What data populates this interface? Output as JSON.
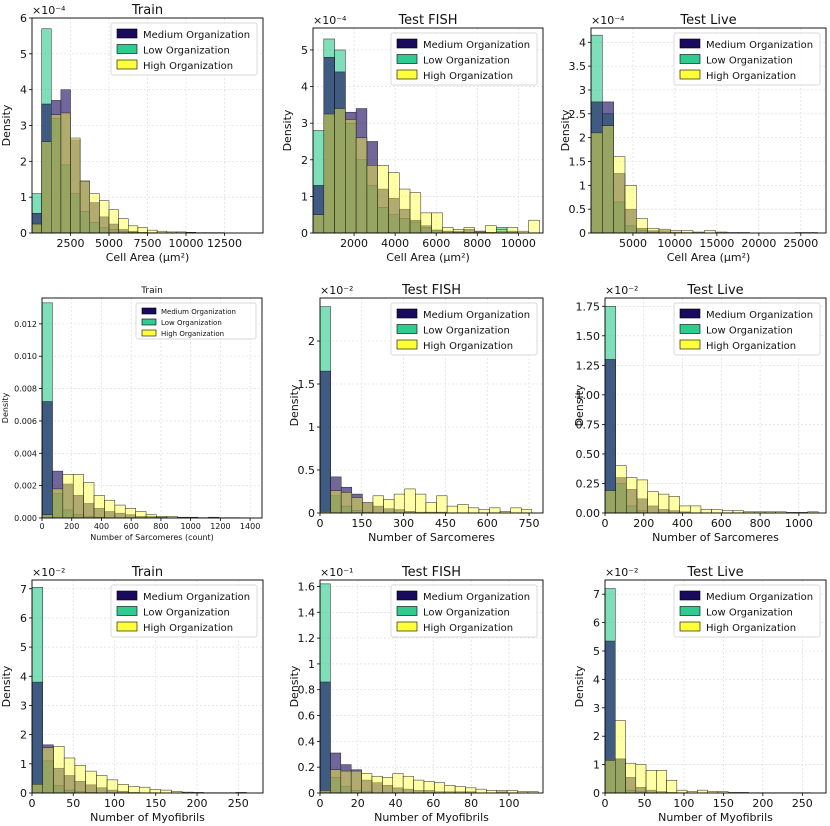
{
  "legend_labels": [
    "Medium Organization",
    "Low Organization",
    "High Organization"
  ],
  "colors": {
    "medium": "#1a0a5e",
    "low": "#2ecc8f",
    "high": "#ffff3a",
    "medium_low_overlap": "#1c4d8c",
    "medium_high_overlap": "#6b2a3e",
    "low_high_overlap": "#5a8f3a",
    "all_overlap": "#5a8f3a"
  },
  "chart_data": [
    {
      "type": "bar",
      "title": "Train",
      "xlabel": "Cell Area (µm²)",
      "ylabel": "Density",
      "exponent": "×10⁻⁴",
      "xlim": [
        0,
        15000
      ],
      "ylim": [
        0,
        6
      ],
      "xticks": [
        2500,
        5000,
        7500,
        10000,
        12500
      ],
      "yticks": [
        0,
        1,
        2,
        3,
        4,
        5,
        6
      ],
      "bin_edges": [
        0,
        625,
        1250,
        1875,
        2500,
        3125,
        3750,
        4375,
        5000,
        5625,
        6250,
        6875,
        7500,
        8125,
        8750,
        9375,
        10000,
        10625,
        11250,
        11875,
        12500
      ],
      "series": [
        {
          "name": "Medium Organization",
          "values": [
            0.55,
            3.6,
            3.7,
            4.0,
            2.6,
            1.45,
            0.85,
            0.45,
            0.25,
            0.1,
            0.05,
            0.02,
            0.01,
            0.01,
            0,
            0,
            0,
            0,
            0,
            0
          ]
        },
        {
          "name": "Low Organization",
          "values": [
            1.1,
            5.7,
            3.2,
            1.9,
            1.1,
            0.6,
            0.3,
            0.15,
            0.1,
            0.05,
            0.02,
            0.01,
            0,
            0,
            0,
            0,
            0,
            0,
            0,
            0
          ]
        },
        {
          "name": "High Organization",
          "values": [
            0.25,
            2.55,
            3.3,
            3.35,
            2.65,
            1.45,
            1.1,
            0.9,
            0.65,
            0.4,
            0.2,
            0.15,
            0.08,
            0.05,
            0.03,
            0.03,
            0.02,
            0.01,
            0.01,
            0.01
          ]
        }
      ]
    },
    {
      "type": "bar",
      "title": "Test FISH",
      "xlabel": "Cell Area (µm²)",
      "ylabel": "Density",
      "exponent": "×10⁻⁴",
      "xlim": [
        0,
        11200
      ],
      "ylim": [
        0,
        5.6
      ],
      "xticks": [
        2000,
        4000,
        6000,
        8000,
        10000
      ],
      "yticks": [
        0,
        1,
        2,
        3,
        4,
        5
      ],
      "bin_edges": [
        0,
        525,
        1050,
        1575,
        2100,
        2625,
        3150,
        3675,
        4200,
        4725,
        5250,
        5775,
        6300,
        6825,
        7350,
        7875,
        8400,
        8925,
        9450,
        9975,
        10500,
        11025
      ],
      "series": [
        {
          "name": "Medium Organization",
          "values": [
            1.3,
            4.8,
            4.4,
            3.3,
            3.4,
            2.5,
            1.2,
            0.95,
            0.65,
            0.35,
            0.2,
            0.08,
            0.05,
            0.05,
            0.1,
            0.05,
            0.02,
            0.05,
            0.05,
            0,
            0
          ]
        },
        {
          "name": "Low Organization",
          "values": [
            2.8,
            5.3,
            5.0,
            3.0,
            2.0,
            1.3,
            0.7,
            0.5,
            0.4,
            0.3,
            0.15,
            0.08,
            0.05,
            0.02,
            0.02,
            0.02,
            0.01,
            0.15,
            0.01,
            0,
            0
          ]
        },
        {
          "name": "High Organization",
          "values": [
            0.5,
            3.25,
            3.4,
            3.1,
            2.6,
            1.85,
            1.85,
            1.65,
            1.2,
            1.1,
            0.55,
            0.55,
            0.15,
            0.1,
            0.15,
            0.05,
            0.2,
            0.1,
            0.15,
            0.05,
            0.35
          ]
        }
      ]
    },
    {
      "type": "bar",
      "title": "Test Live",
      "xlabel": "Cell Area (µm²)",
      "ylabel": "Density",
      "exponent": "×10⁻⁴",
      "xlim": [
        0,
        28000
      ],
      "ylim": [
        0,
        4.3
      ],
      "xticks": [
        5000,
        10000,
        15000,
        20000,
        25000
      ],
      "yticks": [
        0,
        0.5,
        1.0,
        1.5,
        2.0,
        2.5,
        3.0,
        3.5,
        4.0
      ],
      "bin_edges": [
        0,
        1350,
        2700,
        4050,
        5400,
        6750,
        8100,
        9450,
        10800,
        12150,
        13500,
        14850,
        16200,
        17550,
        18900,
        20250,
        21600,
        22950,
        24300,
        25650,
        27000
      ],
      "series": [
        {
          "name": "Medium Organization",
          "values": [
            2.75,
            2.75,
            1.25,
            0.5,
            0.1,
            0.05,
            0.05,
            0.02,
            0.01,
            0,
            0,
            0,
            0,
            0,
            0,
            0,
            0,
            0,
            0,
            0
          ]
        },
        {
          "name": "Low Organization",
          "values": [
            4.15,
            2.5,
            0.65,
            0.15,
            0.05,
            0.02,
            0,
            0,
            0,
            0,
            0,
            0,
            0,
            0,
            0,
            0,
            0,
            0,
            0,
            0
          ]
        },
        {
          "name": "High Organization",
          "values": [
            2.1,
            2.25,
            1.6,
            1.0,
            0.3,
            0.1,
            0.08,
            0.05,
            0.05,
            0.02,
            0.05,
            0.02,
            0.01,
            0.01,
            0,
            0,
            0,
            0,
            0.01,
            0.01
          ]
        }
      ]
    },
    {
      "type": "bar",
      "title": "Train",
      "xlabel": "Number of Sarcomeres (count)",
      "ylabel": "Density",
      "exponent": "",
      "xlim": [
        0,
        1480
      ],
      "ylim": [
        0,
        0.0136
      ],
      "xticks": [
        0,
        200,
        400,
        600,
        800,
        1000,
        1200,
        1400
      ],
      "yticks": [
        0.0,
        0.002,
        0.004,
        0.006,
        0.008,
        0.01,
        0.012
      ],
      "tick_labels_y": [
        "0.000",
        "0.002",
        "0.004",
        "0.006",
        "0.008",
        "0.010",
        "0.012"
      ],
      "small": true,
      "bin_edges": [
        0,
        70,
        140,
        210,
        280,
        350,
        420,
        490,
        560,
        630,
        700,
        770,
        840,
        910,
        980,
        1050,
        1120,
        1190,
        1260,
        1330,
        1400
      ],
      "series": [
        {
          "name": "Medium Organization",
          "values": [
            0.0072,
            0.0029,
            0.0021,
            0.0014,
            0.0009,
            0.0006,
            0.0004,
            0.0003,
            0.0002,
            0.0001,
            0.0001,
            5e-05,
            2e-05,
            1e-05,
            0,
            0,
            0,
            0,
            0,
            0
          ]
        },
        {
          "name": "Low Organization",
          "values": [
            0.0133,
            0.0015,
            0.0005,
            0.0002,
            0.0001,
            5e-05,
            0,
            0,
            0,
            0,
            0,
            0,
            0,
            0,
            0,
            0,
            0,
            0,
            0,
            0
          ]
        },
        {
          "name": "High Organization",
          "values": [
            0.0002,
            0.0018,
            0.0027,
            0.0027,
            0.0022,
            0.0014,
            0.0011,
            0.0008,
            0.0006,
            0.0004,
            0.0002,
            0.0001,
            0.0001,
            5e-05,
            5e-05,
            2e-05,
            5e-05,
            2e-05,
            2e-05,
            1e-05
          ]
        }
      ]
    },
    {
      "type": "bar",
      "title": "Test FISH",
      "xlabel": "Number of Sarcomeres",
      "ylabel": "Density",
      "exponent": "×10⁻²",
      "xlim": [
        0,
        800
      ],
      "ylim": [
        0,
        2.5
      ],
      "xticks": [
        0,
        150,
        300,
        450,
        600,
        750
      ],
      "yticks": [
        0,
        0.5,
        1.0,
        1.5,
        2.0
      ],
      "bin_edges": [
        0,
        38,
        76,
        114,
        152,
        190,
        228,
        266,
        304,
        342,
        380,
        418,
        456,
        494,
        532,
        570,
        608,
        646,
        684,
        722,
        760
      ],
      "series": [
        {
          "name": "Medium Organization",
          "values": [
            1.65,
            0.42,
            0.3,
            0.22,
            0.12,
            0.08,
            0.05,
            0.04,
            0.02,
            0.01,
            0.01,
            0.01,
            0,
            0,
            0,
            0,
            0,
            0,
            0,
            0
          ]
        },
        {
          "name": "Low Organization",
          "values": [
            2.4,
            0.2,
            0.08,
            0.03,
            0.01,
            0,
            0,
            0,
            0,
            0,
            0,
            0,
            0,
            0,
            0,
            0,
            0,
            0,
            0,
            0
          ]
        },
        {
          "name": "High Organization",
          "values": [
            0.02,
            0.26,
            0.24,
            0.18,
            0.12,
            0.2,
            0.16,
            0.22,
            0.28,
            0.22,
            0.12,
            0.2,
            0.08,
            0.1,
            0.06,
            0.04,
            0.06,
            0.02,
            0.06,
            0.04
          ]
        }
      ]
    },
    {
      "type": "bar",
      "title": "Test Live",
      "xlabel": "Number of Sarcomeres",
      "ylabel": "Density",
      "exponent": "×10⁻²",
      "xlim": [
        0,
        1140
      ],
      "ylim": [
        0,
        1.82
      ],
      "xticks": [
        0,
        200,
        400,
        600,
        800,
        1000
      ],
      "yticks": [
        0,
        0.25,
        0.5,
        0.75,
        1.0,
        1.25,
        1.5,
        1.75
      ],
      "tick_labels_y": [
        "0.00",
        "0.25",
        "0.50",
        "0.75",
        "1.00",
        "1.25",
        "1.50",
        "1.75"
      ],
      "bin_edges": [
        0,
        55,
        110,
        165,
        220,
        275,
        330,
        385,
        440,
        495,
        550,
        605,
        660,
        715,
        770,
        825,
        880,
        935,
        990,
        1045,
        1100
      ],
      "series": [
        {
          "name": "Medium Organization",
          "values": [
            1.3,
            0.3,
            0.2,
            0.12,
            0.06,
            0.03,
            0.02,
            0.01,
            0,
            0,
            0,
            0,
            0,
            0,
            0,
            0,
            0,
            0,
            0,
            0
          ]
        },
        {
          "name": "Low Organization",
          "values": [
            1.75,
            0.25,
            0.06,
            0.02,
            0,
            0,
            0,
            0,
            0,
            0,
            0,
            0,
            0,
            0,
            0,
            0,
            0,
            0,
            0,
            0
          ]
        },
        {
          "name": "High Organization",
          "values": [
            0.19,
            0.4,
            0.3,
            0.28,
            0.18,
            0.16,
            0.14,
            0.06,
            0.06,
            0.03,
            0.03,
            0.02,
            0.02,
            0.01,
            0.01,
            0.01,
            0.01,
            0.005,
            0.005,
            0.01
          ]
        }
      ]
    },
    {
      "type": "bar",
      "title": "Train",
      "xlabel": "Number of Myofibrils",
      "ylabel": "Density",
      "exponent": "×10⁻²",
      "xlim": [
        0,
        280
      ],
      "ylim": [
        0,
        7.3
      ],
      "xticks": [
        0,
        50,
        100,
        150,
        200,
        250
      ],
      "yticks": [
        0,
        1,
        2,
        3,
        4,
        5,
        6,
        7
      ],
      "bin_edges": [
        0,
        13,
        26,
        39,
        52,
        65,
        78,
        91,
        104,
        117,
        130,
        143,
        156,
        169,
        182,
        195,
        208,
        221,
        234,
        247,
        260
      ],
      "series": [
        {
          "name": "Medium Organization",
          "values": [
            3.8,
            1.65,
            0.85,
            0.6,
            0.4,
            0.28,
            0.18,
            0.1,
            0.06,
            0.02,
            0.01,
            0.01,
            0,
            0,
            0,
            0,
            0,
            0,
            0,
            0
          ]
        },
        {
          "name": "Low Organization",
          "values": [
            7.05,
            1.1,
            0.25,
            0.1,
            0.05,
            0.02,
            0,
            0,
            0,
            0,
            0,
            0,
            0,
            0,
            0,
            0,
            0,
            0,
            0,
            0
          ]
        },
        {
          "name": "High Organization",
          "values": [
            0.3,
            1.55,
            1.6,
            1.2,
            0.95,
            0.75,
            0.6,
            0.45,
            0.3,
            0.22,
            0.2,
            0.12,
            0.1,
            0.05,
            0.03,
            0.02,
            0.01,
            0.01,
            0.01,
            0.02
          ]
        }
      ]
    },
    {
      "type": "bar",
      "title": "Test FISH",
      "xlabel": "Number of Myofibrils",
      "ylabel": "Density",
      "exponent": "×10⁻¹",
      "xlim": [
        0,
        118
      ],
      "ylim": [
        0,
        1.65
      ],
      "xticks": [
        0,
        20,
        40,
        60,
        80,
        100
      ],
      "yticks": [
        0,
        0.2,
        0.4,
        0.6,
        0.8,
        1.0,
        1.2,
        1.4,
        1.6
      ],
      "bin_edges": [
        0,
        5.5,
        11,
        16.5,
        22,
        27.5,
        33,
        38.5,
        44,
        49.5,
        55,
        60.5,
        66,
        71.5,
        77,
        82.5,
        88,
        93.5,
        99,
        104.5,
        110,
        115.5
      ],
      "series": [
        {
          "name": "Medium Organization",
          "values": [
            0.86,
            0.31,
            0.22,
            0.18,
            0.1,
            0.08,
            0.06,
            0.04,
            0.03,
            0.02,
            0.02,
            0.01,
            0.01,
            0.01,
            0.01,
            0,
            0,
            0.01,
            0,
            0,
            0
          ]
        },
        {
          "name": "Low Organization",
          "values": [
            1.62,
            0.12,
            0.05,
            0.02,
            0.01,
            0,
            0,
            0,
            0,
            0,
            0,
            0,
            0,
            0,
            0,
            0,
            0,
            0,
            0,
            0,
            0
          ]
        },
        {
          "name": "High Organization",
          "values": [
            0.02,
            0.18,
            0.17,
            0.17,
            0.15,
            0.13,
            0.12,
            0.15,
            0.13,
            0.1,
            0.09,
            0.08,
            0.06,
            0.05,
            0.04,
            0.03,
            0.02,
            0.02,
            0.02,
            0.01,
            0.01
          ]
        }
      ]
    },
    {
      "type": "bar",
      "title": "Test Live",
      "xlabel": "Number of Myofibrils",
      "ylabel": "Density",
      "exponent": "×10⁻²",
      "xlim": [
        0,
        280
      ],
      "ylim": [
        0,
        7.5
      ],
      "xticks": [
        0,
        50,
        100,
        150,
        200,
        250
      ],
      "yticks": [
        0,
        1,
        2,
        3,
        4,
        5,
        6,
        7
      ],
      "bin_edges": [
        0,
        13,
        26,
        39,
        52,
        65,
        78,
        91,
        104,
        117,
        130,
        143,
        156,
        169,
        182,
        195,
        208,
        221,
        234,
        247,
        260
      ],
      "series": [
        {
          "name": "Medium Organization",
          "values": [
            5.35,
            1.2,
            0.55,
            0.2,
            0.1,
            0.05,
            0.02,
            0.01,
            0,
            0,
            0,
            0,
            0,
            0,
            0,
            0,
            0,
            0,
            0,
            0
          ]
        },
        {
          "name": "Low Organization",
          "values": [
            7.2,
            1.2,
            0.1,
            0.05,
            0,
            0,
            0,
            0,
            0,
            0,
            0,
            0,
            0,
            0,
            0,
            0,
            0,
            0,
            0,
            0
          ]
        },
        {
          "name": "High Organization",
          "values": [
            1.15,
            2.55,
            1.05,
            1.0,
            0.8,
            0.8,
            0.45,
            0.1,
            0.05,
            0.1,
            0.05,
            0.05,
            0.02,
            0.02,
            0.01,
            0.01,
            0.01,
            0.01,
            0.01,
            0.01
          ]
        }
      ]
    }
  ]
}
